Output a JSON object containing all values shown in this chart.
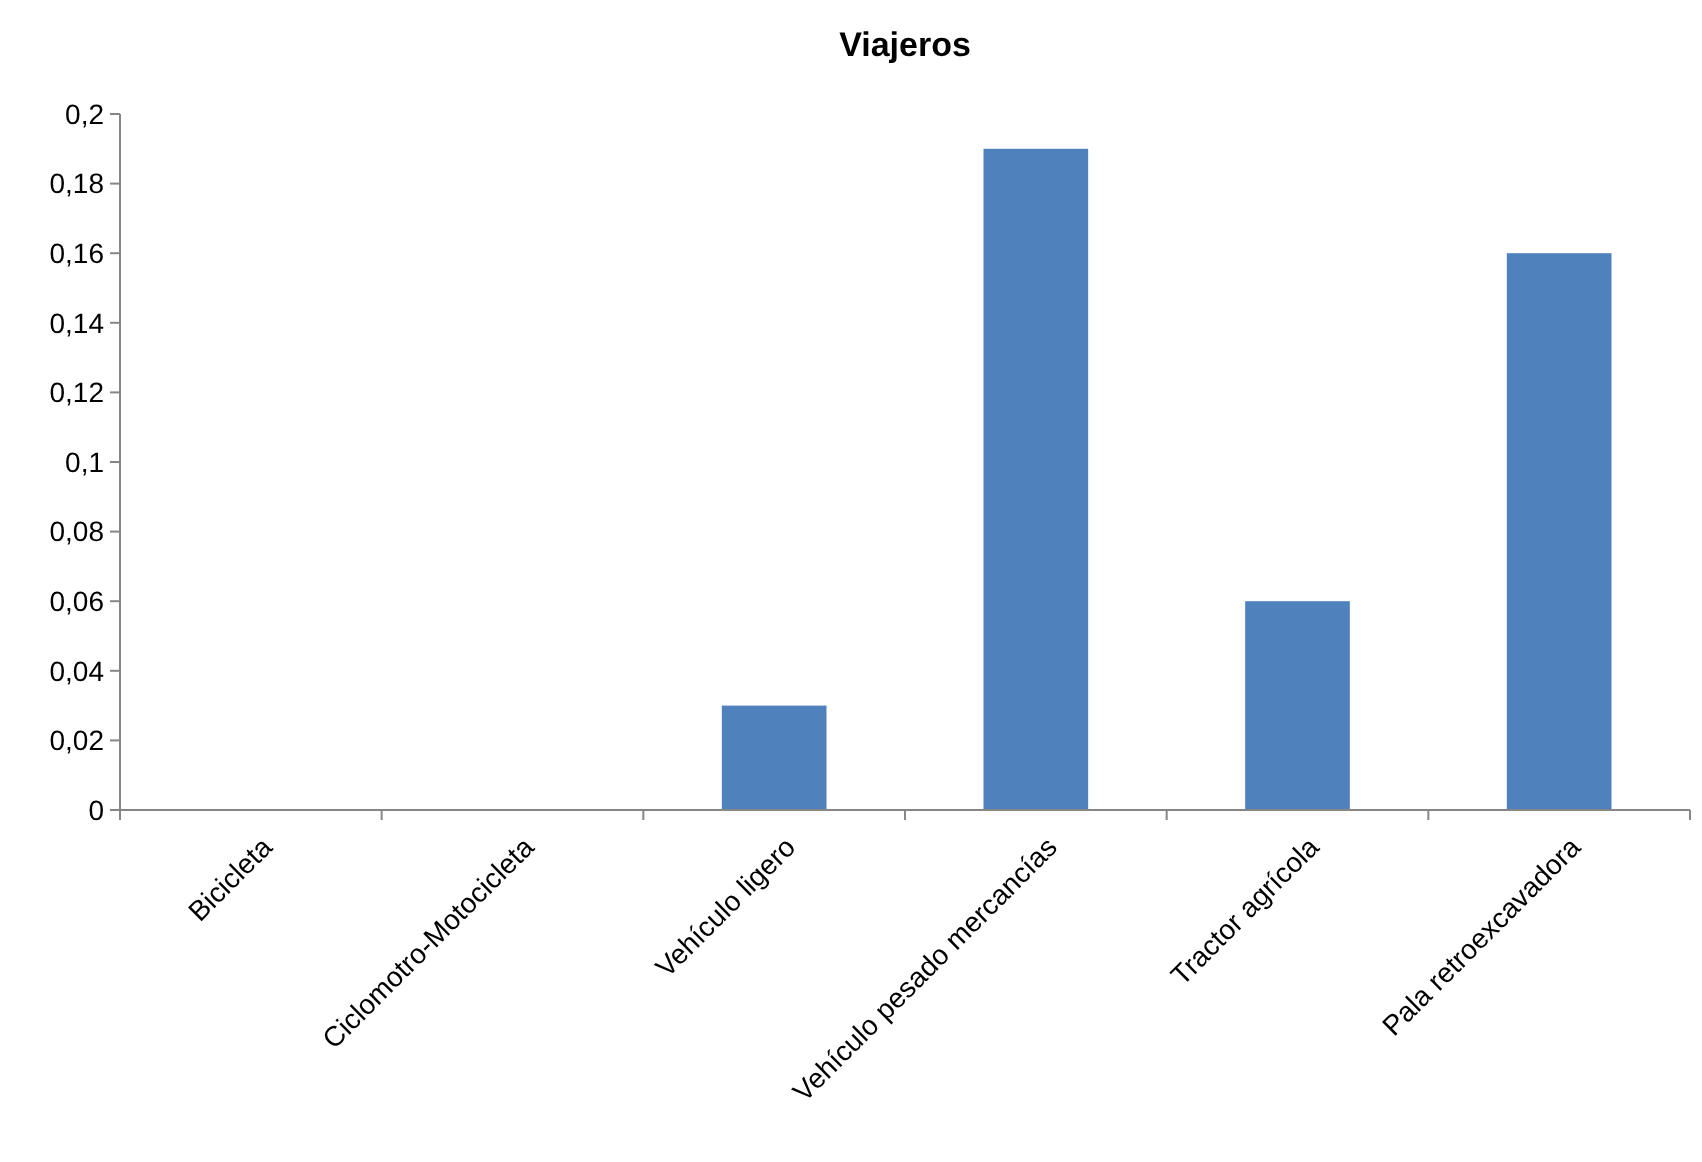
{
  "chart_data": {
    "type": "bar",
    "title": "Viajeros",
    "categories": [
      "Bicicleta",
      "Ciclomotro-Motocicleta",
      "Vehículo ligero",
      "Vehículo pesado mercancías",
      "Tractor agrícola",
      "Pala retroexcavadora"
    ],
    "values": [
      0,
      0,
      0.03,
      0.19,
      0.06,
      0.16
    ],
    "color": "#4f81bd",
    "ylim": [
      0,
      0.2
    ],
    "yticks": [
      0,
      {
        "value": 0.02,
        "label": "0,02"
      },
      {
        "value": 0.04,
        "label": "0,04"
      },
      {
        "value": 0.06,
        "label": "0,06"
      },
      {
        "value": 0.08,
        "label": "0,08"
      },
      {
        "value": 0.1,
        "label": "0,1"
      },
      {
        "value": 0.12,
        "label": "0,12"
      },
      {
        "value": 0.14,
        "label": "0,14"
      },
      {
        "value": 0.16,
        "label": "0,16"
      },
      {
        "value": 0.18,
        "label": "0,18"
      },
      {
        "value": 0.2,
        "label": "0,2"
      }
    ],
    "grid": false
  }
}
